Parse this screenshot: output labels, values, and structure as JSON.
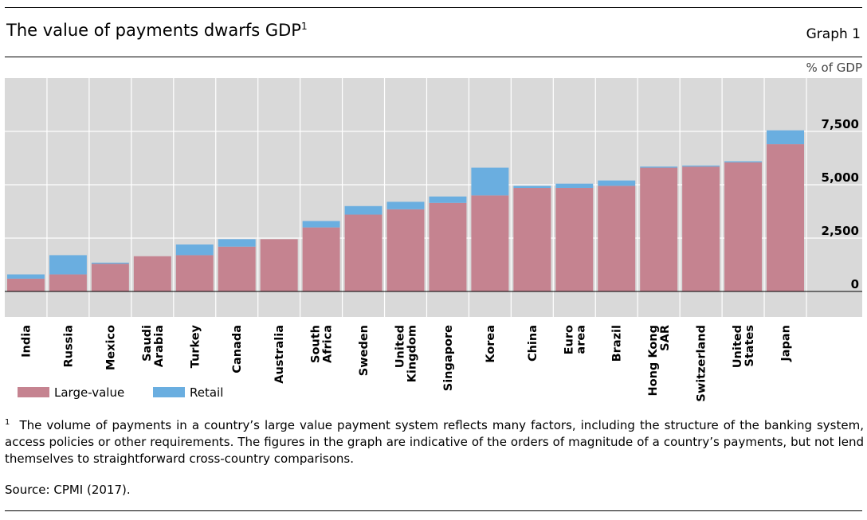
{
  "header": {
    "title": "The value of payments dwarfs GDP",
    "title_note": "1",
    "graph_label": "Graph 1",
    "unit_label": "% of GDP"
  },
  "chart_data": {
    "type": "bar",
    "stacked": true,
    "categories": [
      "India",
      "Russia",
      "Mexico",
      "Saudi Arabia",
      "Turkey",
      "Canada",
      "Australia",
      "South Africa",
      "Sweden",
      "United Kingdom",
      "Singapore",
      "Korea",
      "China",
      "Euro area",
      "Brazil",
      "Hong Kong SAR",
      "Switzerland",
      "United States",
      "Japan"
    ],
    "category_lines": [
      [
        "India"
      ],
      [
        "Russia"
      ],
      [
        "Mexico"
      ],
      [
        "Saudi",
        "Arabia"
      ],
      [
        "Turkey"
      ],
      [
        "Canada"
      ],
      [
        "Australia"
      ],
      [
        "South",
        "Africa"
      ],
      [
        "Sweden"
      ],
      [
        "United",
        "Kingdom"
      ],
      [
        "Singapore"
      ],
      [
        "Korea"
      ],
      [
        "China"
      ],
      [
        "Euro",
        "area"
      ],
      [
        "Brazil"
      ],
      [
        "Hong Kong",
        "SAR"
      ],
      [
        "Switzerland"
      ],
      [
        "United",
        "States"
      ],
      [
        "Japan"
      ]
    ],
    "series": [
      {
        "name": "Large-value",
        "color": "#c58390",
        "values": [
          600,
          800,
          1300,
          1650,
          1700,
          2100,
          2450,
          3000,
          3600,
          3850,
          4150,
          4500,
          4850,
          4850,
          4950,
          5800,
          5850,
          6050,
          6900
        ]
      },
      {
        "name": "Retail",
        "color": "#6aaee0",
        "values": [
          200,
          900,
          50,
          0,
          500,
          350,
          0,
          300,
          400,
          350,
          300,
          1300,
          100,
          200,
          250,
          50,
          50,
          50,
          650
        ]
      }
    ],
    "yticks": [
      0,
      2500,
      5000,
      7500
    ],
    "ytick_labels": [
      "0",
      "2,500",
      "5,000",
      "7,500"
    ],
    "ylim": [
      -1200,
      10000
    ],
    "ylabel": "% of GDP",
    "grid": true,
    "legend": "bottom-left"
  },
  "footnote": {
    "marker": "1",
    "text": "The volume of payments in a country’s large value payment system reflects many factors, including the structure of the banking system, access policies or other requirements. The figures in the graph are indicative of the orders of magnitude of a country’s payments, but not lend themselves to straightforward cross-country comparisons."
  },
  "source": "Source: CPMI (2017)."
}
